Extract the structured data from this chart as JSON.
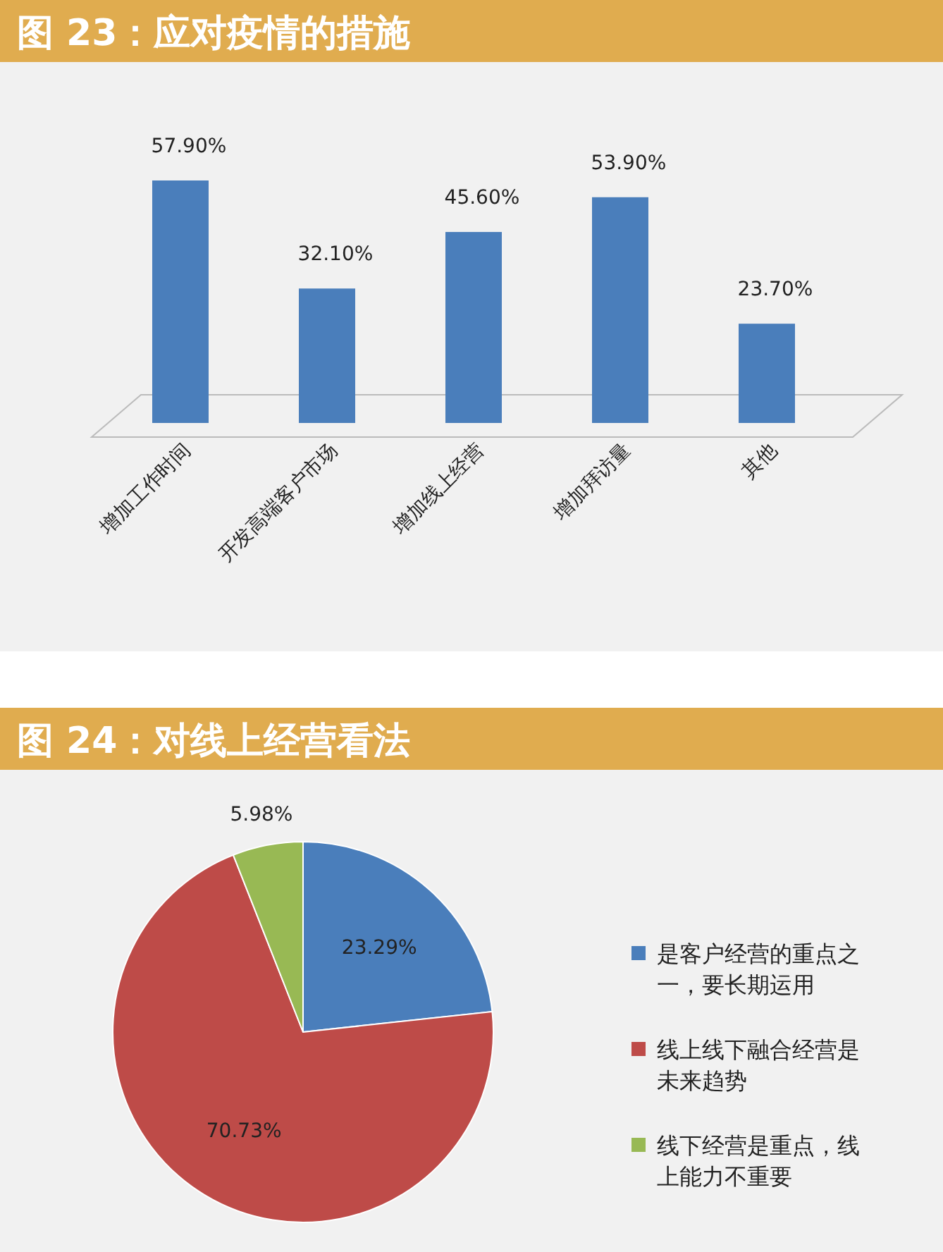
{
  "chart_data": [
    {
      "type": "bar",
      "title": "图 23：应对疫情的措施",
      "categories": [
        "增加工作时间",
        "开发高端客户市场",
        "增加线上经营",
        "增加拜访量",
        "其他"
      ],
      "values": [
        57.9,
        32.1,
        45.6,
        53.9,
        23.7
      ],
      "color": "#4a7ebb",
      "value_labels": [
        "57.90%",
        "32.10%",
        "45.60%",
        "53.90%",
        "23.70%"
      ]
    },
    {
      "type": "pie",
      "title": "图 24：对线上经营看法",
      "categories": [
        "是客户经营的重点之一，要长期运用",
        "线上线下融合经营是未来趋势",
        "线下经营是重点，线上能力不重要"
      ],
      "values": [
        23.29,
        70.73,
        5.98
      ],
      "colors": [
        "#4a7ebb",
        "#be4b48",
        "#98b954"
      ],
      "value_labels": [
        "23.29%",
        "70.73%",
        "5.98%"
      ],
      "legend": "right"
    }
  ]
}
